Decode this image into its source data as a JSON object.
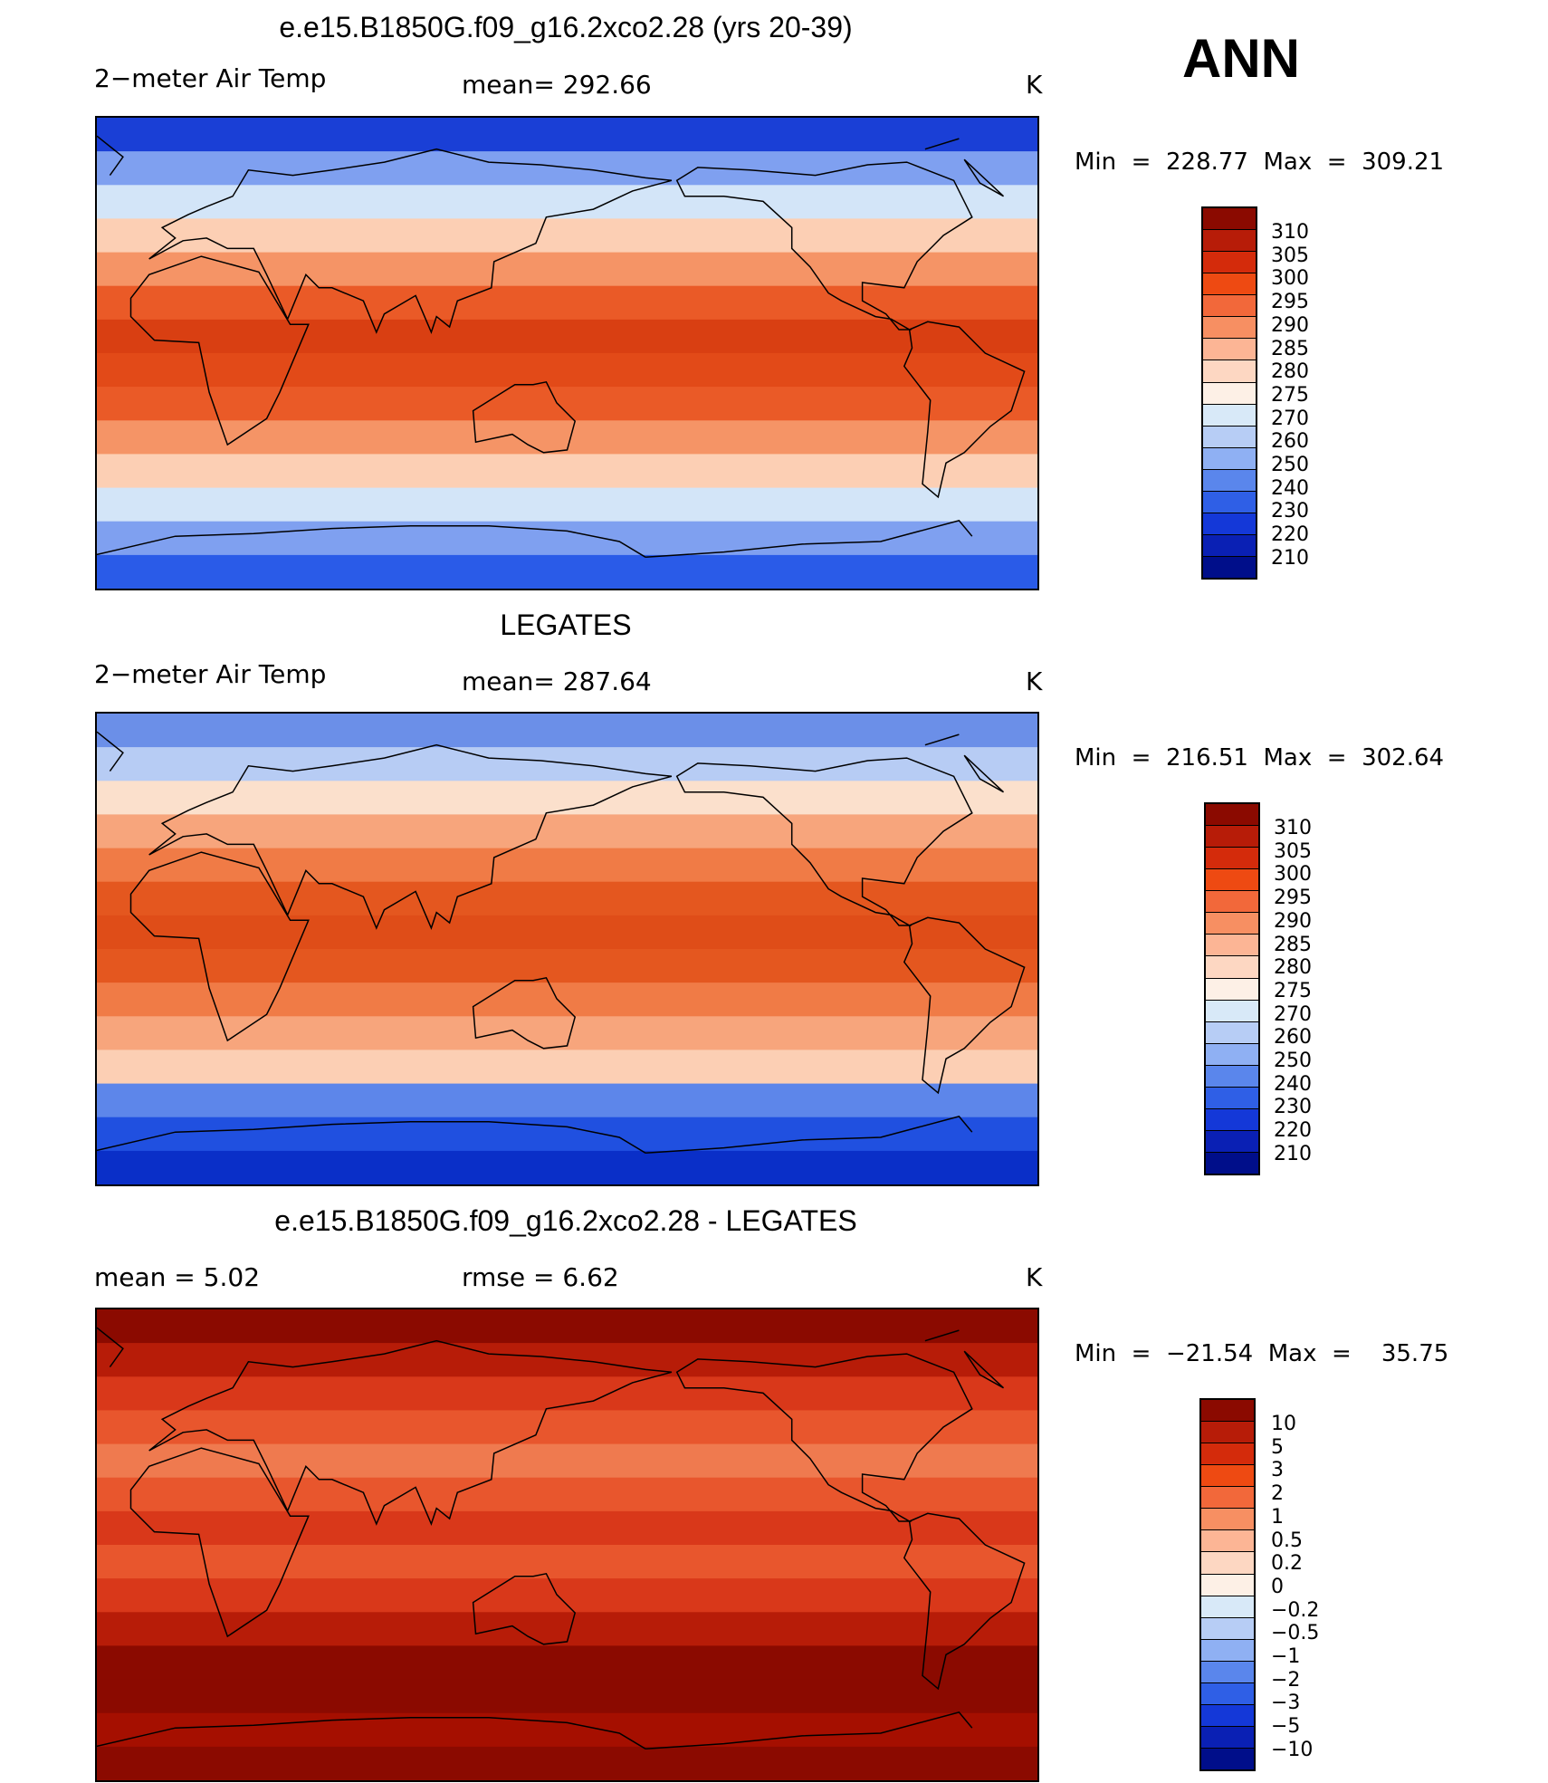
{
  "season": "ANN",
  "panels": [
    {
      "title": "e.e15.B1850G.f09_g16.2xco2.28 (yrs 20-39)",
      "left_label": "2−meter Air Temp",
      "center_label": "mean=  292.66",
      "units": "K",
      "minmax": "Min  =  228.77  Max  =  309.21",
      "bands": [
        "#1a3fd6",
        "#7fa0f0",
        "#d3e5f8",
        "#fccfb4",
        "#f59466",
        "#ea5a27",
        "#d93f12",
        "#e24a18",
        "#ea5a27",
        "#f59466",
        "#fccfb4",
        "#d3e5f8",
        "#7fa0f0",
        "#2a5be8"
      ]
    },
    {
      "title": "LEGATES",
      "left_label": "2−meter Air Temp",
      "center_label": "mean=  287.64",
      "units": "K",
      "minmax": "Min  =  216.51  Max  =  302.64",
      "bands": [
        "#6b8fe8",
        "#b7ccf4",
        "#fbe0cc",
        "#f7a57c",
        "#f07b46",
        "#e4571f",
        "#df4d18",
        "#e4571f",
        "#f07b46",
        "#f7a57c",
        "#fccfb4",
        "#5d86ea",
        "#2050e0",
        "#0a2fc8"
      ]
    },
    {
      "title": "e.e15.B1850G.f09_g16.2xco2.28 - LEGATES",
      "left_label": "mean =      5.02",
      "center_label": "rmse =      6.62",
      "units": "K",
      "minmax": "Min  =  −21.54  Max  =    35.75",
      "bands": [
        "#8b0a00",
        "#b71c08",
        "#d9381a",
        "#e8562d",
        "#ef7a4f",
        "#e8562d",
        "#d9381a",
        "#e8562d",
        "#d9381a",
        "#b71c08",
        "#8b0a00",
        "#8b0a00",
        "#a50f00",
        "#8b0a00"
      ]
    }
  ],
  "colorbars": [
    {
      "labels": [
        "310",
        "305",
        "300",
        "295",
        "290",
        "285",
        "280",
        "275",
        "270",
        "260",
        "250",
        "240",
        "230",
        "220",
        "210"
      ],
      "colors": [
        "#8b0a00",
        "#b71c08",
        "#d42b0b",
        "#ee4a12",
        "#f2683a",
        "#f78f62",
        "#fcb595",
        "#fdd7c2",
        "#fdf0e6",
        "#d8e9f8",
        "#b7cdf5",
        "#8fb0f3",
        "#5a86ec",
        "#2f5fe6",
        "#1438d8",
        "#0a20b4",
        "#000e8a"
      ]
    },
    {
      "labels": [
        "310",
        "305",
        "300",
        "295",
        "290",
        "285",
        "280",
        "275",
        "270",
        "260",
        "250",
        "240",
        "230",
        "220",
        "210"
      ],
      "colors": [
        "#8b0a00",
        "#b71c08",
        "#d42b0b",
        "#ee4a12",
        "#f2683a",
        "#f78f62",
        "#fcb595",
        "#fdd7c2",
        "#fdf0e6",
        "#d8e9f8",
        "#b7cdf5",
        "#8fb0f3",
        "#5a86ec",
        "#2f5fe6",
        "#1438d8",
        "#0a20b4",
        "#000e8a"
      ]
    },
    {
      "labels": [
        "10",
        "5",
        "3",
        "2",
        "1",
        "0.5",
        "0.2",
        "0",
        "−0.2",
        "−0.5",
        "−1",
        "−2",
        "−3",
        "−5",
        "−10"
      ],
      "colors": [
        "#8b0a00",
        "#b71c08",
        "#d42b0b",
        "#ee4a12",
        "#f2683a",
        "#f78f62",
        "#fcb595",
        "#fdd7c2",
        "#fdf0e6",
        "#d8e9f8",
        "#b7cdf5",
        "#8fb0f3",
        "#5a86ec",
        "#2f5fe6",
        "#1438d8",
        "#0a20b4",
        "#000e8a"
      ]
    }
  ]
}
